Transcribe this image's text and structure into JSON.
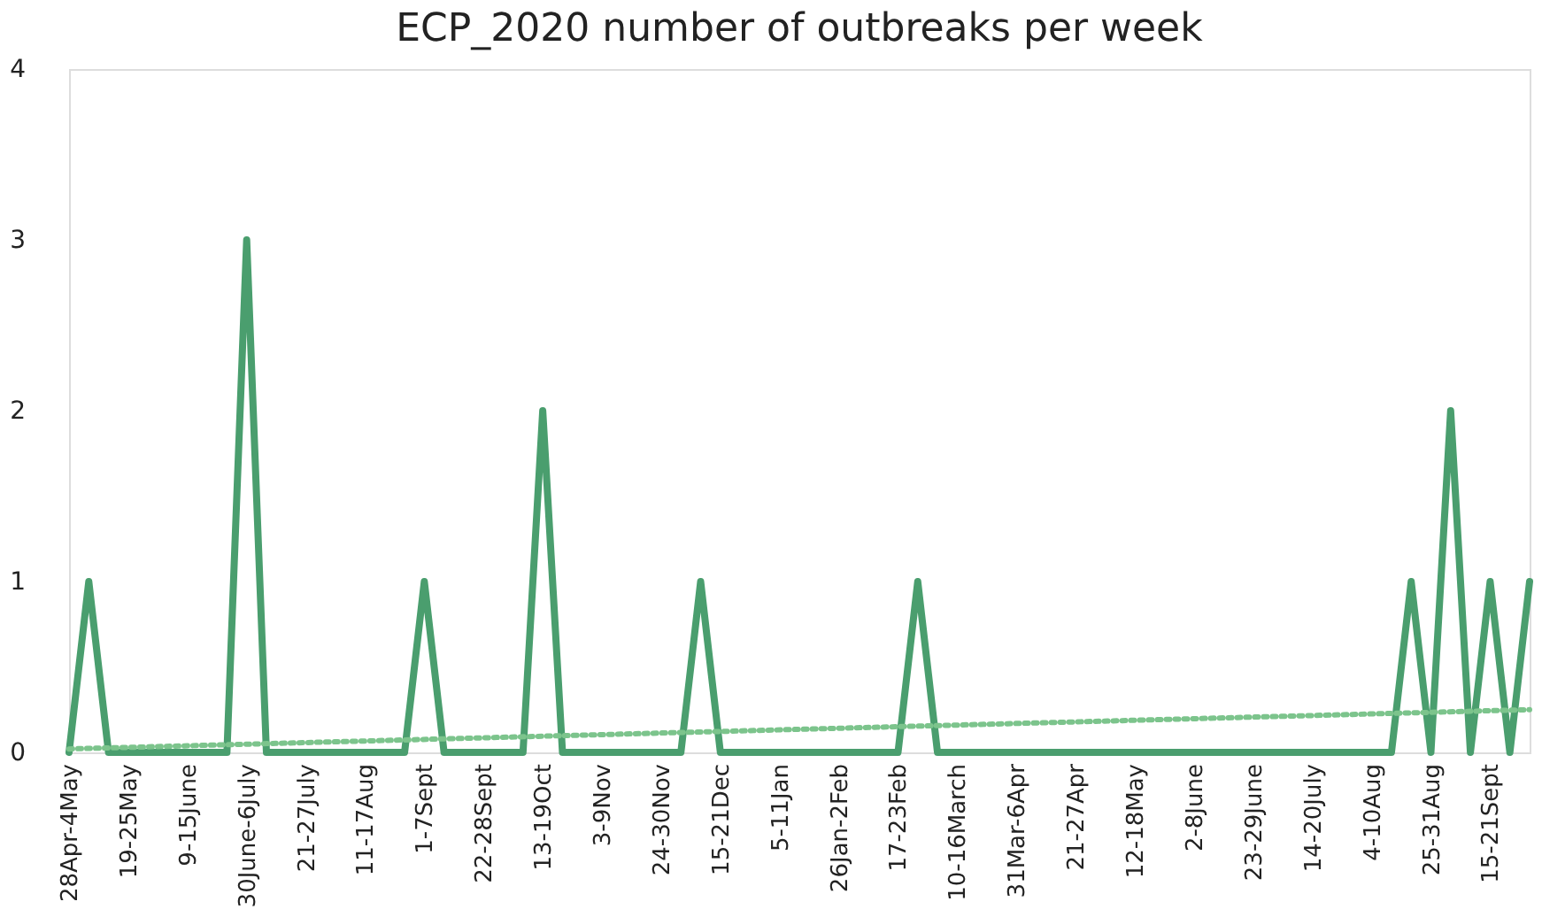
{
  "chart_data": {
    "type": "line",
    "title": "ECP_2020 number of outbreaks per week",
    "categories": [
      "28Apr-4May",
      null,
      null,
      "19-25May",
      null,
      null,
      "9-15June",
      null,
      null,
      "30June-6July",
      null,
      null,
      "21-27July",
      null,
      null,
      "11-17Aug",
      null,
      null,
      "1-7Sept",
      null,
      null,
      "22-28Sept",
      null,
      null,
      "13-19Oct",
      null,
      null,
      "3-9Nov",
      null,
      null,
      "24-30Nov",
      null,
      null,
      "15-21Dec",
      null,
      null,
      "5-11Jan",
      null,
      null,
      "26Jan-2Feb",
      null,
      null,
      "17-23Feb",
      null,
      null,
      "10-16March",
      null,
      null,
      "31Mar-6Apr",
      null,
      null,
      "21-27Apr",
      null,
      null,
      "12-18May",
      null,
      null,
      "2-8June",
      null,
      null,
      "23-29June",
      null,
      null,
      "14-20July",
      null,
      null,
      "4-10Aug",
      null,
      null,
      "25-31Aug",
      null,
      null,
      "15-21Sept",
      null,
      null
    ],
    "series": [
      {
        "color": "#4a9e6e",
        "line_style": "solid",
        "values": [
          0,
          1,
          0,
          0,
          0,
          0,
          0,
          0,
          0,
          3,
          0,
          0,
          0,
          0,
          0,
          0,
          0,
          0,
          1,
          0,
          0,
          0,
          0,
          0,
          2,
          0,
          0,
          0,
          0,
          0,
          0,
          0,
          1,
          0,
          0,
          0,
          0,
          0,
          0,
          0,
          0,
          0,
          0,
          1,
          0,
          0,
          0,
          0,
          0,
          0,
          0,
          0,
          0,
          0,
          0,
          0,
          0,
          0,
          0,
          0,
          0,
          0,
          0,
          0,
          0,
          0,
          0,
          0,
          1,
          0,
          2,
          0,
          1,
          0,
          1
        ]
      },
      {
        "color": "#7cc48c",
        "line_style": "dotted",
        "values": [
          0.02,
          null,
          null,
          null,
          null,
          null,
          null,
          null,
          null,
          null,
          null,
          null,
          null,
          null,
          null,
          null,
          null,
          null,
          null,
          null,
          null,
          null,
          null,
          null,
          null,
          null,
          null,
          null,
          null,
          null,
          null,
          null,
          null,
          null,
          null,
          null,
          null,
          null,
          null,
          null,
          null,
          null,
          null,
          null,
          null,
          null,
          null,
          null,
          null,
          null,
          null,
          null,
          null,
          null,
          null,
          null,
          null,
          null,
          null,
          null,
          null,
          null,
          null,
          null,
          null,
          null,
          null,
          null,
          null,
          null,
          null,
          null,
          null,
          null,
          0.25
        ]
      }
    ],
    "ylim": [
      0,
      4
    ],
    "yticks": [
      0,
      1,
      2,
      3,
      4
    ],
    "grid": false,
    "marker": "none"
  }
}
